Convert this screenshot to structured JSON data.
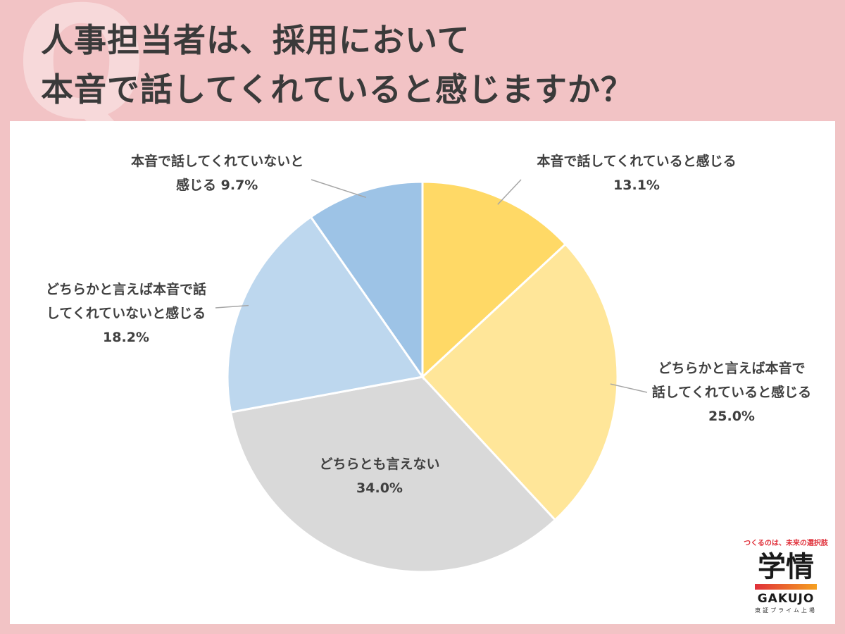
{
  "title": {
    "line1": "人事担当者は、採用において",
    "line2": "本音で話してくれていると感じますか？"
  },
  "chart_data": {
    "type": "pie",
    "start_angle": "12 o'clock",
    "direction": "clockwise",
    "slices": [
      {
        "label_lines": [
          "本音で話してくれていると感じる"
        ],
        "value_text": "13.1%",
        "value": 13.1,
        "color": "#ffd966"
      },
      {
        "label_lines": [
          "どちらかと言えば本音で",
          "話してくれていると感じる"
        ],
        "value_text": "25.0%",
        "value": 25.0,
        "color": "#ffe699"
      },
      {
        "label_lines": [
          "どちらとも言えない"
        ],
        "value_text": "34.0%",
        "value": 34.0,
        "color": "#d9d9d9"
      },
      {
        "label_lines": [
          "どちらかと言えば本音で話",
          "してくれていないと感じる"
        ],
        "value_text": "18.2%",
        "value": 18.2,
        "color": "#bdd7ee"
      },
      {
        "label_lines": [
          "本音で話してくれていないと",
          "感じる"
        ],
        "value_text": "9.7%",
        "value": 9.7,
        "color": "#9dc3e6"
      }
    ]
  },
  "logo": {
    "tagline": "つくるのは、未来の選択肢",
    "kanji": "学情",
    "brand": "GAKUJO",
    "sub": "東証プライム上場"
  }
}
